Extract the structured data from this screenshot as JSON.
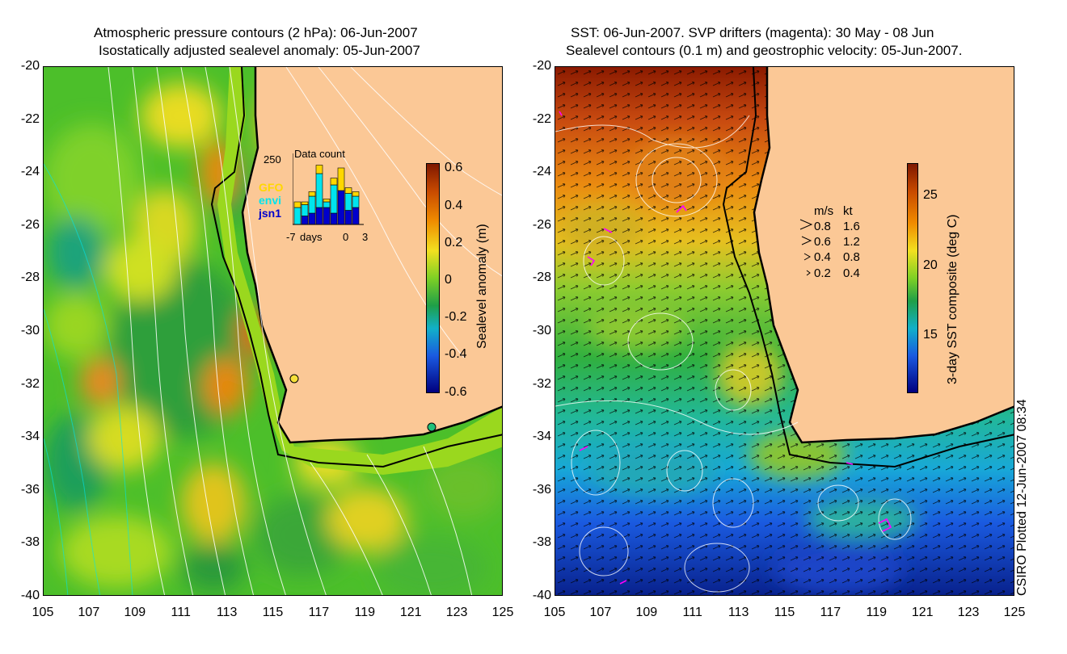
{
  "left": {
    "title1": "Atmospheric pressure contours (2 hPa): 06-Jun-2007",
    "title2": "Isostatically adjusted sealevel anomaly: 05-Jun-2007",
    "colorbar": {
      "label": "Sealevel anomaly (m)",
      "ticks": [
        "0.6",
        "0.4",
        "0.2",
        "0",
        "-0.2",
        "-0.4",
        "-0.6"
      ]
    },
    "inset": {
      "title": "Data count",
      "ymax": "250",
      "x_left": "-7",
      "x_mid_label": "days",
      "x_zero": "0",
      "x_right": "3",
      "legend": [
        {
          "label": "GFO",
          "color": "#ffd700"
        },
        {
          "label": "envi",
          "color": "#00e5ee"
        },
        {
          "label": "jsn1",
          "color": "#0000cc"
        }
      ]
    }
  },
  "right": {
    "title1": "SST: 06-Jun-2007. SVP drifters (magenta): 30 May - 08 Jun",
    "title2": "Sealevel contours (0.1 m) and geostrophic velocity: 05-Jun-2007.",
    "colorbar": {
      "label": "3-day SST composite (deg C)",
      "ticks": [
        "25",
        "20",
        "15"
      ]
    },
    "velocity_legend": {
      "header_ms": "m/s",
      "header_kt": "kt",
      "rows": [
        {
          "ms": "0.8",
          "kt": "1.6"
        },
        {
          "ms": "0.6",
          "kt": "1.2"
        },
        {
          "ms": "0.4",
          "kt": "0.8"
        },
        {
          "ms": "0.2",
          "kt": "0.4"
        }
      ]
    }
  },
  "axes": {
    "y_ticks": [
      "-20",
      "-22",
      "-24",
      "-26",
      "-28",
      "-30",
      "-32",
      "-34",
      "-36",
      "-38",
      "-40"
    ],
    "x_ticks": [
      "105",
      "107",
      "109",
      "111",
      "113",
      "115",
      "117",
      "119",
      "121",
      "123",
      "125"
    ]
  },
  "credit": "CSIRO Plotted 12-Jun-2007 08:34",
  "colors": {
    "land": "#fbc896",
    "anomaly_high": "#8b1a00",
    "anomaly_low": "#00007f",
    "sst_warm": "#8b1a00",
    "sst_cold": "#00007f",
    "drifter": "#ff00ff"
  }
}
